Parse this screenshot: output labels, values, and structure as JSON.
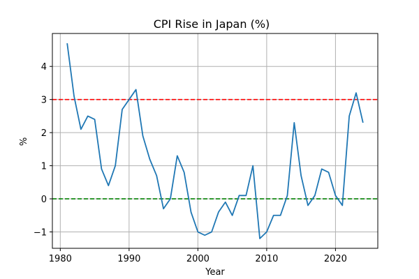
{
  "chart_data": {
    "type": "line",
    "title": "CPI Rise in Japan (%)",
    "xlabel": "Year",
    "ylabel": "%",
    "xlim": [
      1978.85,
      2026.15
    ],
    "ylim": [
      -1.495,
      4.995
    ],
    "xticks": [
      1980,
      1990,
      2000,
      2010,
      2020
    ],
    "yticks": [
      -1,
      0,
      1,
      2,
      3,
      4
    ],
    "ytick_labels": [
      "−1",
      "0",
      "1",
      "2",
      "3",
      "4"
    ],
    "grid": true,
    "series": [
      {
        "color": "#1f77b4",
        "x": [
          1981,
          1982,
          1983,
          1984,
          1985,
          1986,
          1987,
          1988,
          1989,
          1990,
          1991,
          1992,
          1993,
          1994,
          1995,
          1996,
          1997,
          1998,
          1999,
          2000,
          2001,
          2002,
          2003,
          2004,
          2005,
          2006,
          2007,
          2008,
          2009,
          2010,
          2011,
          2012,
          2013,
          2014,
          2015,
          2016,
          2017,
          2018,
          2019,
          2020,
          2021,
          2022,
          2023,
          2024
        ],
        "values": [
          4.7,
          3.1,
          2.1,
          2.5,
          2.4,
          0.9,
          0.4,
          1.0,
          2.7,
          3.0,
          3.3,
          1.9,
          1.2,
          0.7,
          -0.3,
          0.0,
          1.3,
          0.8,
          -0.4,
          -1.0,
          -1.1,
          -1.0,
          -0.4,
          -0.1,
          -0.5,
          0.1,
          0.1,
          1.0,
          -1.2,
          -1.0,
          -0.5,
          -0.5,
          0.1,
          2.3,
          0.7,
          -0.2,
          0.1,
          0.9,
          0.8,
          0.1,
          -0.2,
          2.5,
          3.2,
          2.3
        ]
      }
    ],
    "reference_lines": [
      {
        "y": 3,
        "color": "#ff0000",
        "style": "dashed"
      },
      {
        "y": 0,
        "color": "#008000",
        "style": "dashed"
      }
    ]
  }
}
